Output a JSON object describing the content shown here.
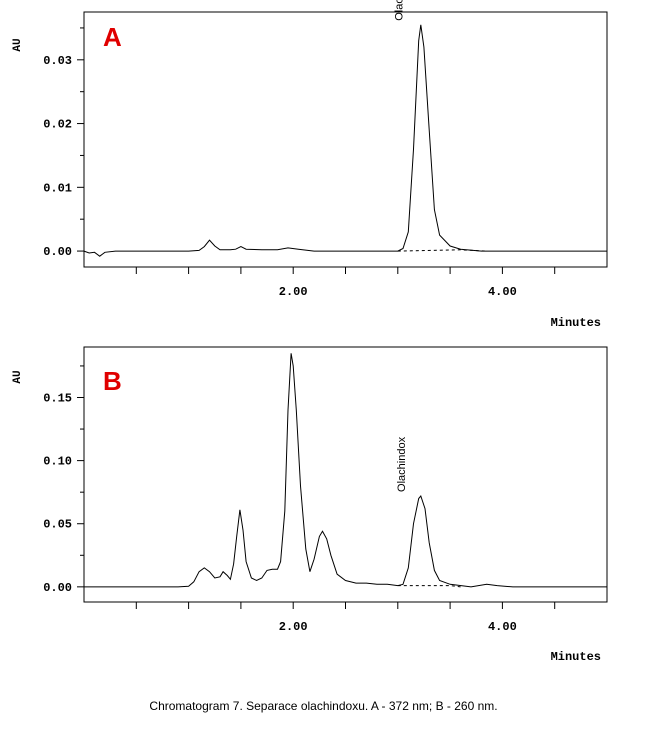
{
  "caption": "Chromatogram 7. Separace  olachindoxu. A -  372 nm; B - 260 nm.",
  "colors": {
    "trace": "#000000",
    "panel_letter": "#e00000"
  },
  "chart_data": [
    {
      "type": "line",
      "panel_label": "A",
      "ylabel": "AU",
      "xlabel": "Minutes",
      "xlim": [
        0.0,
        5.0
      ],
      "ylim": [
        -0.0025,
        0.0375
      ],
      "x_ticks": [
        0.5,
        1.0,
        1.5,
        2.0,
        2.5,
        3.0,
        3.5,
        4.0,
        4.5
      ],
      "x_tick_labels": [
        {
          "x": 2.0,
          "label": "2.00"
        },
        {
          "x": 4.0,
          "label": "4.00"
        }
      ],
      "y_ticks": [
        0.0,
        0.01,
        0.02,
        0.03
      ],
      "y_tick_labels": [
        "0.00",
        "0.01",
        "0.02",
        "0.03"
      ],
      "grid": false,
      "series": [
        {
          "points": [
            [
              0.0,
              0.0
            ],
            [
              0.05,
              -0.0003
            ],
            [
              0.1,
              -0.0002
            ],
            [
              0.15,
              -0.0008
            ],
            [
              0.2,
              -0.0002
            ],
            [
              0.3,
              0.0
            ],
            [
              0.6,
              0.0
            ],
            [
              1.0,
              0.0
            ],
            [
              1.1,
              0.0001
            ],
            [
              1.15,
              0.0007
            ],
            [
              1.2,
              0.0017
            ],
            [
              1.25,
              0.0008
            ],
            [
              1.3,
              0.0002
            ],
            [
              1.4,
              0.0002
            ],
            [
              1.45,
              0.0003
            ],
            [
              1.5,
              0.0007
            ],
            [
              1.55,
              0.0003
            ],
            [
              1.7,
              0.0002
            ],
            [
              1.85,
              0.0002
            ],
            [
              1.95,
              0.0005
            ],
            [
              2.05,
              0.0003
            ],
            [
              2.2,
              0.0
            ],
            [
              2.6,
              0.0
            ],
            [
              3.0,
              0.0
            ],
            [
              3.05,
              0.0004
            ],
            [
              3.1,
              0.003
            ],
            [
              3.15,
              0.016
            ],
            [
              3.2,
              0.033
            ],
            [
              3.22,
              0.0355
            ],
            [
              3.25,
              0.032
            ],
            [
              3.3,
              0.019
            ],
            [
              3.35,
              0.0065
            ],
            [
              3.4,
              0.0025
            ],
            [
              3.5,
              0.0008
            ],
            [
              3.6,
              0.0003
            ],
            [
              3.8,
              0.0
            ],
            [
              5.0,
              0.0
            ]
          ]
        }
      ],
      "baseline": [
        [
          3.0,
          0.0
        ],
        [
          3.6,
          0.0002
        ],
        [
          3.85,
          0.0
        ]
      ],
      "annotations": [
        {
          "text": "Olachindox",
          "x": 3.2,
          "y": 0.0355
        }
      ]
    },
    {
      "type": "line",
      "panel_label": "B",
      "ylabel": "AU",
      "xlabel": "Minutes",
      "xlim": [
        0.0,
        5.0
      ],
      "ylim": [
        -0.012,
        0.19
      ],
      "x_ticks": [
        0.5,
        1.0,
        1.5,
        2.0,
        2.5,
        3.0,
        3.5,
        4.0,
        4.5
      ],
      "x_tick_labels": [
        {
          "x": 2.0,
          "label": "2.00"
        },
        {
          "x": 4.0,
          "label": "4.00"
        }
      ],
      "y_ticks": [
        0.0,
        0.05,
        0.1,
        0.15
      ],
      "y_tick_labels": [
        "0.00",
        "0.05",
        "0.10",
        "0.15"
      ],
      "grid": false,
      "series": [
        {
          "points": [
            [
              0.0,
              0.0
            ],
            [
              0.9,
              0.0
            ],
            [
              1.0,
              0.0005
            ],
            [
              1.05,
              0.004
            ],
            [
              1.1,
              0.012
            ],
            [
              1.15,
              0.015
            ],
            [
              1.2,
              0.012
            ],
            [
              1.25,
              0.007
            ],
            [
              1.3,
              0.008
            ],
            [
              1.33,
              0.012
            ],
            [
              1.37,
              0.009
            ],
            [
              1.4,
              0.006
            ],
            [
              1.43,
              0.018
            ],
            [
              1.46,
              0.04
            ],
            [
              1.49,
              0.061
            ],
            [
              1.52,
              0.045
            ],
            [
              1.55,
              0.02
            ],
            [
              1.6,
              0.007
            ],
            [
              1.65,
              0.005
            ],
            [
              1.7,
              0.007
            ],
            [
              1.75,
              0.013
            ],
            [
              1.8,
              0.014
            ],
            [
              1.85,
              0.014
            ],
            [
              1.88,
              0.02
            ],
            [
              1.92,
              0.06
            ],
            [
              1.95,
              0.14
            ],
            [
              1.98,
              0.185
            ],
            [
              2.0,
              0.175
            ],
            [
              2.03,
              0.14
            ],
            [
              2.07,
              0.08
            ],
            [
              2.12,
              0.03
            ],
            [
              2.16,
              0.012
            ],
            [
              2.2,
              0.022
            ],
            [
              2.25,
              0.04
            ],
            [
              2.28,
              0.044
            ],
            [
              2.32,
              0.038
            ],
            [
              2.36,
              0.025
            ],
            [
              2.42,
              0.01
            ],
            [
              2.5,
              0.005
            ],
            [
              2.6,
              0.003
            ],
            [
              2.7,
              0.003
            ],
            [
              2.8,
              0.002
            ],
            [
              2.9,
              0.002
            ],
            [
              3.0,
              0.001
            ],
            [
              3.05,
              0.002
            ],
            [
              3.1,
              0.015
            ],
            [
              3.15,
              0.05
            ],
            [
              3.2,
              0.07
            ],
            [
              3.22,
              0.072
            ],
            [
              3.26,
              0.062
            ],
            [
              3.3,
              0.035
            ],
            [
              3.35,
              0.013
            ],
            [
              3.4,
              0.005
            ],
            [
              3.5,
              0.002
            ],
            [
              3.7,
              0.0
            ],
            [
              3.85,
              0.002
            ],
            [
              3.95,
              0.001
            ],
            [
              4.1,
              0.0
            ],
            [
              5.0,
              0.0
            ]
          ]
        }
      ],
      "baseline": [
        [
          3.0,
          0.001
        ],
        [
          3.5,
          0.001
        ],
        [
          3.6,
          0.0
        ]
      ],
      "annotations": [
        {
          "text": "Olachindox",
          "x": 3.22,
          "y": 0.072
        }
      ]
    }
  ]
}
